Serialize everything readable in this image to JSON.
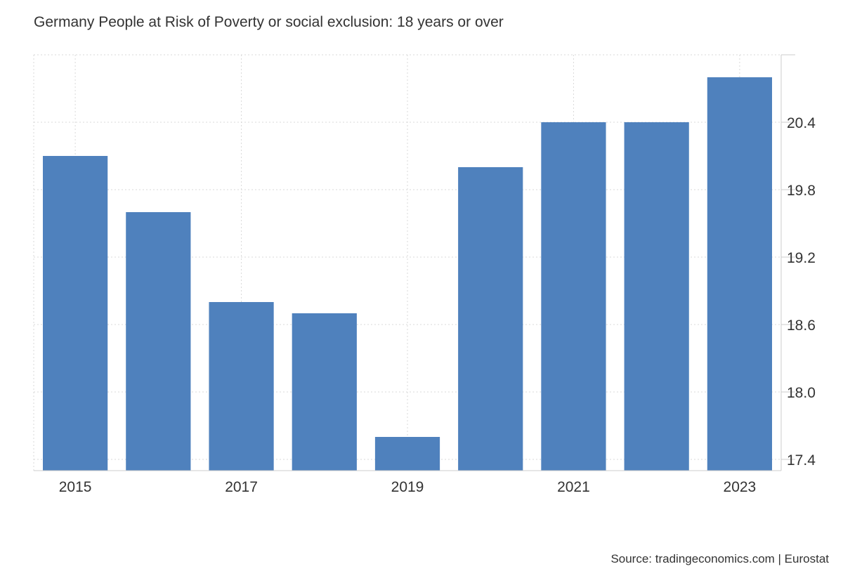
{
  "chart_data": {
    "type": "bar",
    "title": "Germany People at Risk of Poverty or social exclusion: 18 years or over",
    "source": "Source: tradingeconomics.com | Eurostat",
    "categories": [
      "2015",
      "2016",
      "2017",
      "2018",
      "2019",
      "2020",
      "2021",
      "2022",
      "2023"
    ],
    "values": [
      20.1,
      19.6,
      18.8,
      18.7,
      17.6,
      20.0,
      20.4,
      20.4,
      20.8
    ],
    "x_tick_labels": [
      "2015",
      "2017",
      "2019",
      "2021",
      "2023"
    ],
    "y_ticks": [
      17.4,
      18.0,
      18.6,
      19.2,
      19.8,
      20.4
    ],
    "y_tick_labels": [
      "17.4",
      "18.0",
      "18.6",
      "19.2",
      "19.8",
      "20.4"
    ],
    "ylim": [
      17.3,
      21.0
    ],
    "xlabel": "",
    "ylabel": "",
    "y_axis_position": "right",
    "grid": true,
    "legend": "none",
    "bar_color": "#4f81bd",
    "grid_color": "#d9d9d9",
    "axis_color": "#cccccc"
  }
}
